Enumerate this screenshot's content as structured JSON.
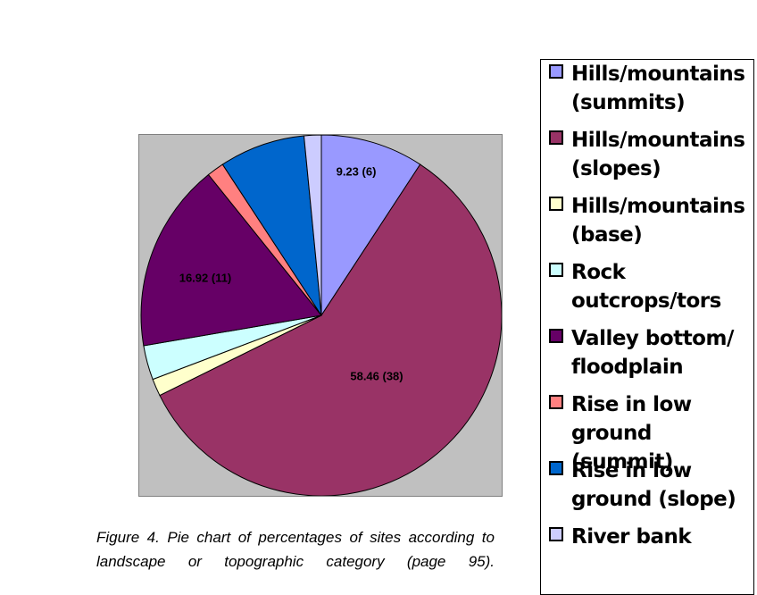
{
  "chart_data": {
    "type": "pie",
    "categories": [
      "Hills/mountains\n(summits)",
      "Hills/mountains\n(slopes)",
      "Hills/mountains\n(base)",
      "Rock\noutcrops/tors",
      "Valley bottom/\nfloodplain",
      "Rise in low\nground (summit)",
      "Rise in low\nground (slope)",
      "River bank"
    ],
    "values": [
      9.23,
      58.46,
      1.54,
      3.08,
      16.92,
      1.54,
      7.69,
      1.54
    ],
    "colors": [
      "#9999ff",
      "#993366",
      "#ffffcc",
      "#ccffff",
      "#660066",
      "#ff8080",
      "#0066cc",
      "#ccccff"
    ],
    "data_labels": [
      "9.23 (6)",
      "58.46 (38)",
      "",
      "",
      "16.92 (11)",
      "",
      "",
      ""
    ],
    "legend_position": "right",
    "plot_background": "#c0c0c0"
  },
  "caption": "Figure 4. Pie chart of percentages of sites according to landscape or topographic category (page 95)."
}
